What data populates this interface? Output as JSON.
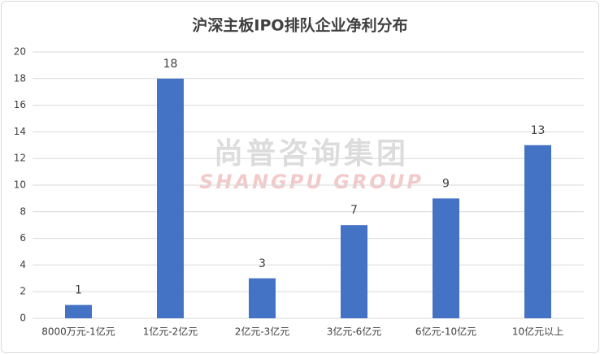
{
  "chart_data": {
    "type": "bar",
    "title": "沪深主板IPO排队企业净利分布",
    "categories": [
      "8000万元-1亿元",
      "1亿元-2亿元",
      "2亿元-3亿元",
      "3亿元-6亿元",
      "6亿元-10亿元",
      "10亿元以上"
    ],
    "values": [
      1,
      18,
      3,
      7,
      9,
      13
    ],
    "color": "#4472c4",
    "ylim": [
      0,
      20
    ],
    "yticks": [
      0,
      2,
      4,
      6,
      8,
      10,
      12,
      14,
      16,
      18,
      20
    ],
    "grid": true,
    "watermark": {
      "cn": "尚普咨询集团",
      "en": "SHANGPU GROUP"
    }
  }
}
